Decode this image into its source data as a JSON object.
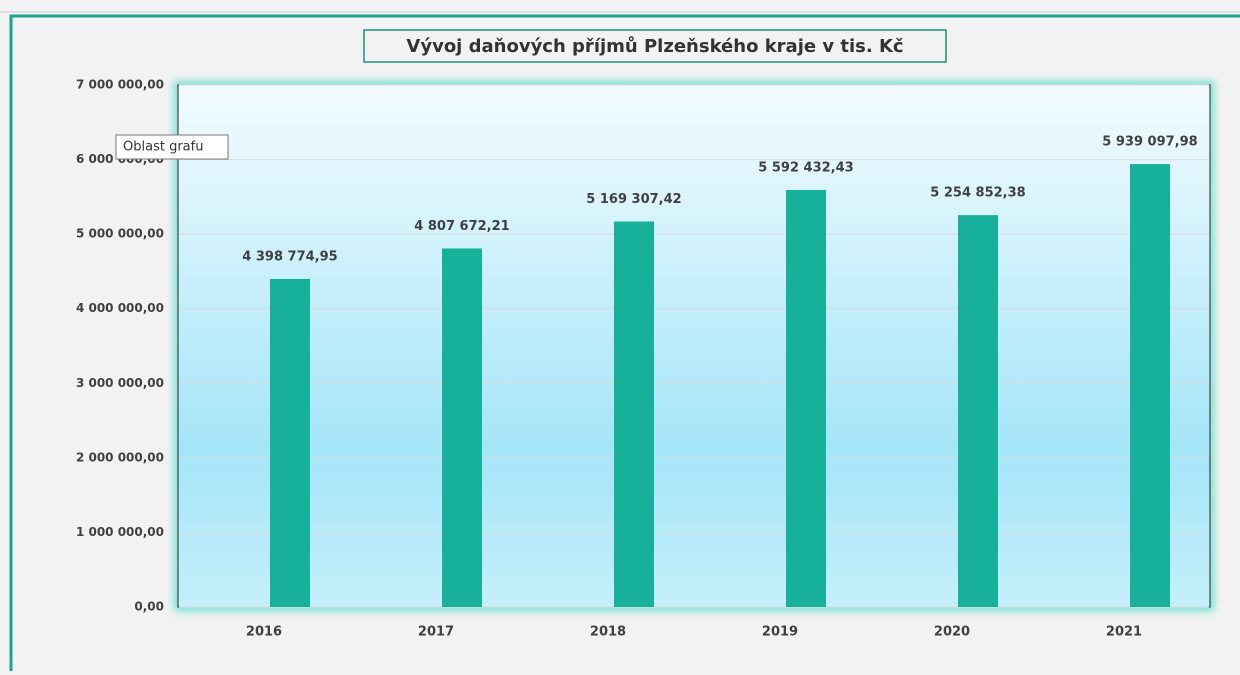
{
  "chart_data": {
    "type": "bar",
    "title": "Vývoj daňových příjmů Plzeňského kraje v tis. Kč",
    "tooltip": "Oblast grafu",
    "categories": [
      "2016",
      "2017",
      "2018",
      "2019",
      "2020",
      "2021"
    ],
    "values": [
      4398774.95,
      4807672.21,
      5169307.42,
      5592432.43,
      5254852.38,
      5939097.98
    ],
    "value_labels": [
      "4 398 774,95",
      "4 807 672,21",
      "5 169 307,42",
      "5 592 432,43",
      "5 254 852,38",
      "5 939 097,98"
    ],
    "color": "#17b09a",
    "ylim": [
      0,
      7000000
    ],
    "yticks": [
      {
        "value": 0,
        "label": "0,00"
      },
      {
        "value": 1000000,
        "label": "1 000 000,00"
      },
      {
        "value": 2000000,
        "label": "2 000 000,00"
      },
      {
        "value": 3000000,
        "label": "3 000 000,00"
      },
      {
        "value": 4000000,
        "label": "4 000 000,00"
      },
      {
        "value": 5000000,
        "label": "5 000 000,00"
      },
      {
        "value": 6000000,
        "label": "6 000 000,00"
      },
      {
        "value": 7000000,
        "label": "7 000 000,00"
      }
    ],
    "grid": true
  }
}
